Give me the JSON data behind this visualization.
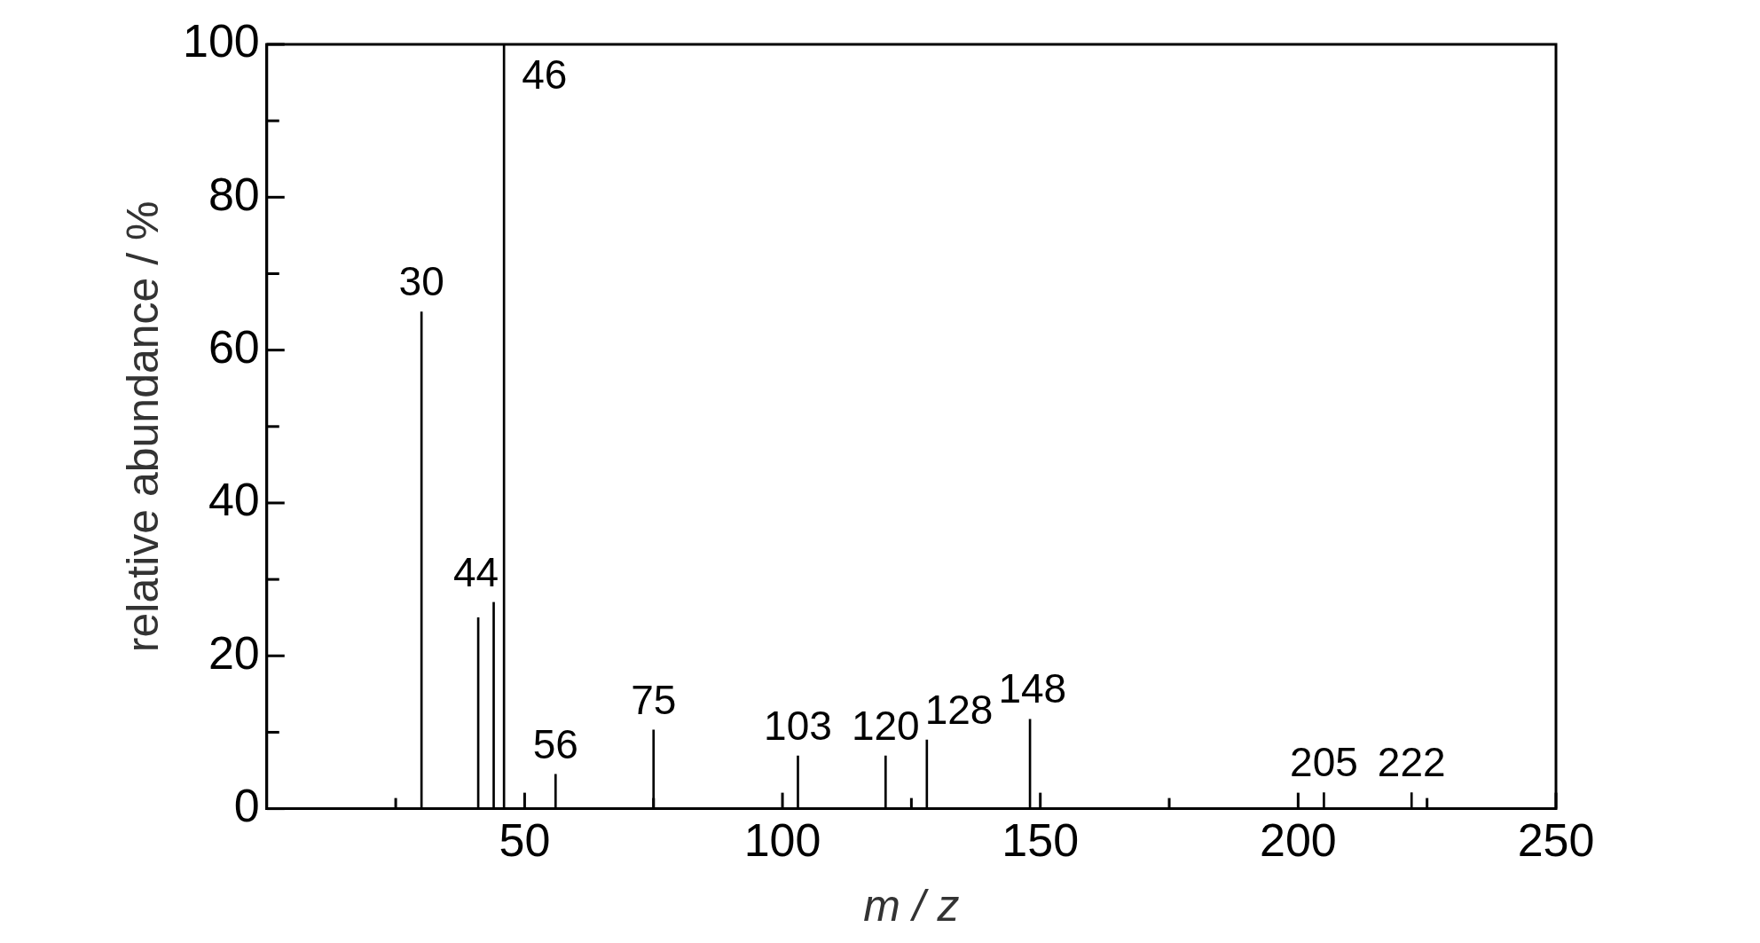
{
  "chart_data": {
    "type": "bar",
    "xlabel": "m / z",
    "ylabel": "relative abundance / %",
    "x": [
      30,
      41,
      44,
      46,
      56,
      75,
      103,
      120,
      128,
      148,
      205,
      222
    ],
    "values": [
      65,
      25,
      27,
      100,
      4.5,
      10.3,
      6.9,
      6.9,
      9,
      11.7,
      2.1,
      2.1
    ],
    "annotations": [
      {
        "text": "30",
        "x": 30,
        "y": 65
      },
      {
        "text": "44",
        "x": 44,
        "y": 27
      },
      {
        "text": "46",
        "x": 46,
        "y": 100
      },
      {
        "text": "56",
        "x": 56,
        "y": 4.5
      },
      {
        "text": "75",
        "x": 75,
        "y": 10.3
      },
      {
        "text": "103",
        "x": 103,
        "y": 6.9
      },
      {
        "text": "120",
        "x": 120,
        "y": 6.9
      },
      {
        "text": "128",
        "x": 128,
        "y": 9
      },
      {
        "text": "148",
        "x": 148,
        "y": 11.7
      },
      {
        "text": "205",
        "x": 205,
        "y": 2.1
      },
      {
        "text": "222",
        "x": 222,
        "y": 2.1
      }
    ],
    "color": "#000000",
    "xlim": [
      0,
      250
    ],
    "xticks": [
      {
        "value": 25,
        "label": null
      },
      50,
      {
        "value": 75,
        "label": null
      },
      100,
      {
        "value": 125,
        "label": null
      },
      150,
      {
        "value": 175,
        "label": null
      },
      200,
      {
        "value": 225,
        "label": null
      },
      250
    ],
    "ylim": [
      0,
      100
    ],
    "yticks": [
      0,
      {
        "value": 10,
        "label": null
      },
      20,
      {
        "value": 30,
        "label": null
      },
      40,
      {
        "value": 50,
        "label": null
      },
      60,
      {
        "value": 70,
        "label": null
      },
      80,
      {
        "value": 90,
        "label": null
      },
      100
    ],
    "grid": false,
    "legend": false
  }
}
